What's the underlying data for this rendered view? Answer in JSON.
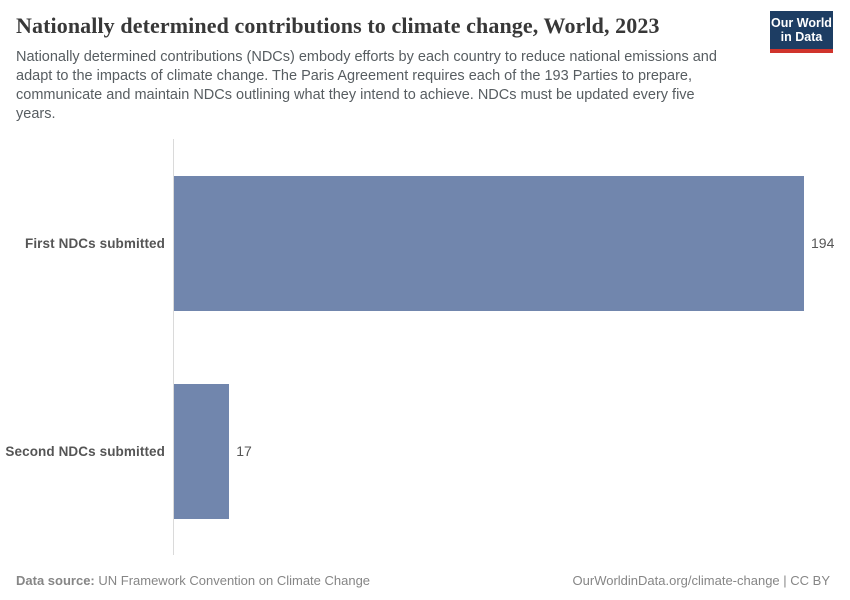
{
  "header": {
    "title": "Nationally determined contributions to climate change, World, 2023",
    "subtitle_lines": [
      "Nationally determined contributions (NDCs) embody efforts by each country to reduce national emissions and",
      "adapt to the impacts of climate change. The Paris Agreement requires each of the 193 Parties to prepare,",
      "communicate and maintain NDCs outlining what they intend to achieve. NDCs must be updated every five",
      "years."
    ],
    "logo": {
      "line1": "Our World",
      "line2": "in Data"
    }
  },
  "chart_data": {
    "type": "bar",
    "orientation": "horizontal",
    "title": "Nationally determined contributions to climate change, World, 2023",
    "categories": [
      "First NDCs submitted",
      "Second NDCs submitted"
    ],
    "values": [
      194,
      17
    ],
    "value_labels": [
      "194",
      "17"
    ],
    "xlim": [
      0,
      194
    ],
    "x_axis_ticks_visible": false,
    "grid": false,
    "data_labels": "end-of-bar",
    "bar_color": "#7186ad",
    "axis_line_color": "#dadada"
  },
  "footer": {
    "source_label": "Data source:",
    "source_text": " UN Framework Convention on Climate Change",
    "right_text": "OurWorldinData.org/climate-change | CC BY"
  },
  "colors": {
    "bar": "#7186ad",
    "logo_navy": "#1d3d63",
    "logo_red": "#d0342c",
    "title_text": "#383838",
    "body_text": "#575d61",
    "footer_text": "#868686"
  }
}
